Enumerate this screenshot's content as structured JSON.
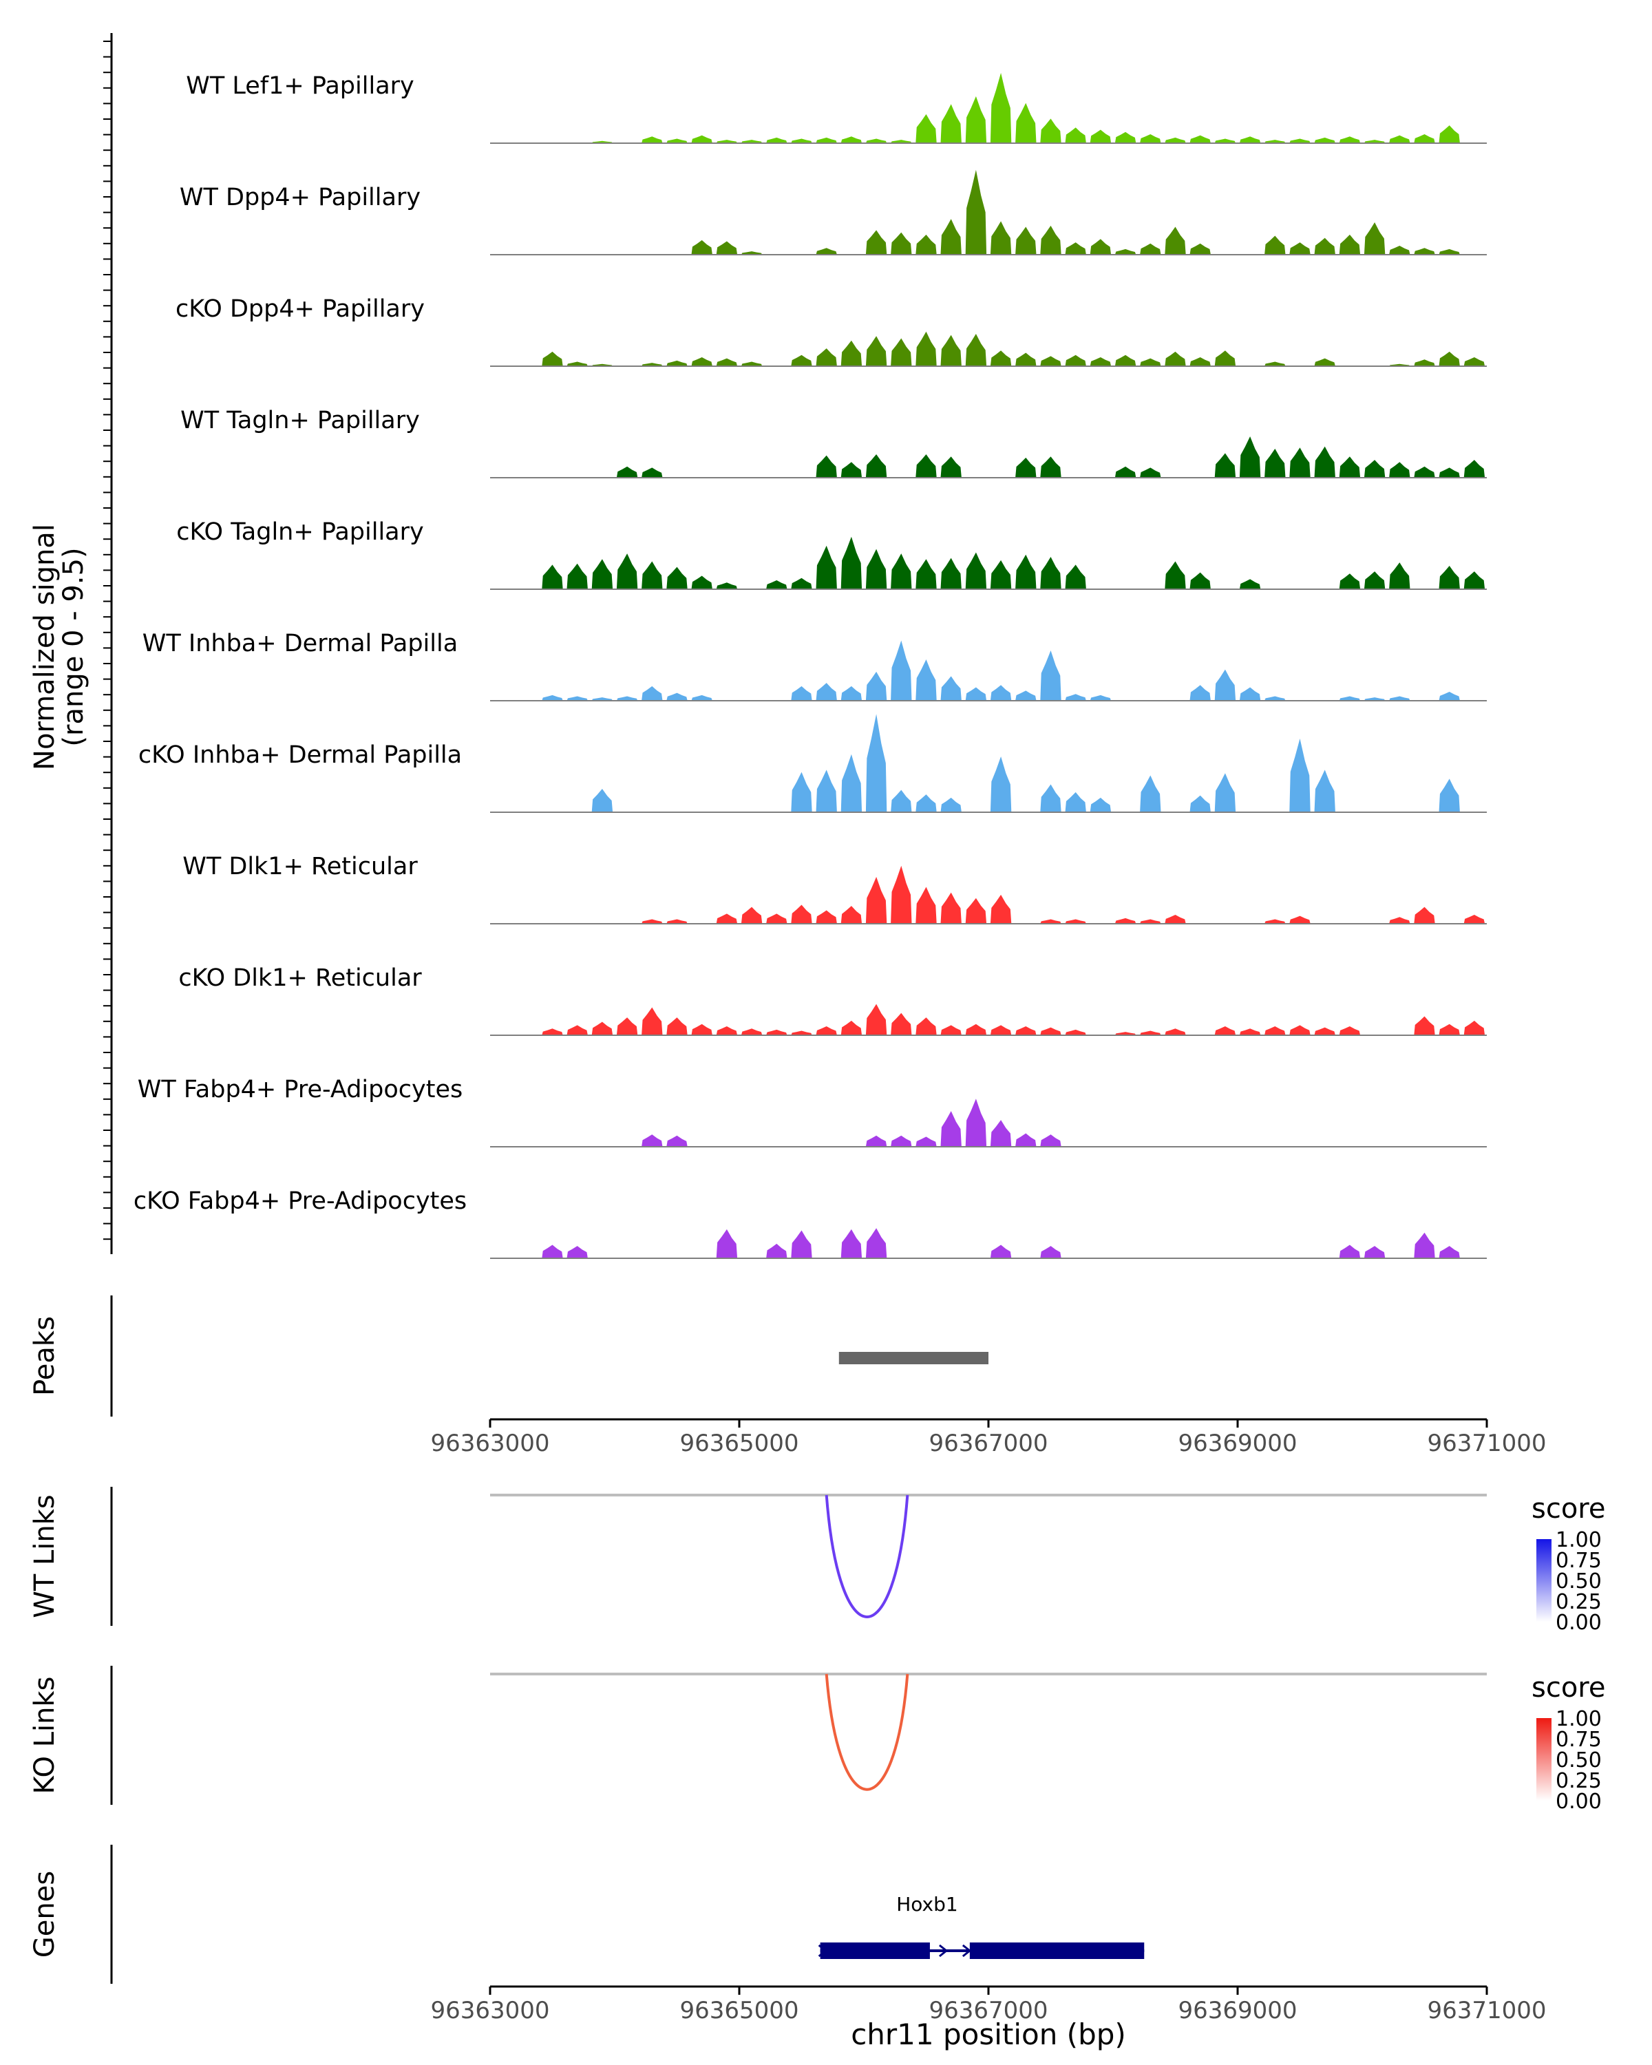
{
  "chart_data": {
    "type": "area",
    "title": "",
    "region": {
      "chrom": "chr11",
      "start": 96363000,
      "end": 96371000
    },
    "xlabel": "chr11 position (bp)",
    "xticks": [
      "96363000",
      "96365000",
      "96367000",
      "96369000",
      "96371000"
    ],
    "xtick_values": [
      96363000,
      96365000,
      96367000,
      96369000,
      96371000
    ],
    "coverage_ylabel": {
      "line1": "Normalized signal",
      "line2": "(range 0 - 9.5)"
    },
    "ylim": [
      0,
      9.5
    ],
    "x_samples": [
      96363100,
      96363300,
      96363500,
      96363700,
      96363900,
      96364100,
      96364300,
      96364500,
      96364700,
      96364900,
      96365100,
      96365300,
      96365500,
      96365700,
      96365900,
      96366100,
      96366300,
      96366500,
      96366700,
      96366900,
      96367100,
      96367300,
      96367500,
      96367700,
      96367900,
      96368100,
      96368300,
      96368500,
      96368700,
      96368900,
      96369100,
      96369300,
      96369500,
      96369700,
      96369900,
      96370100,
      96370300,
      96370500,
      96370700,
      96370900
    ],
    "tracks": [
      {
        "name": "WT Lef1+ Papillary",
        "color": "#66CC00",
        "values": [
          0,
          0,
          0,
          0,
          0.2,
          0,
          0.6,
          0.4,
          0.7,
          0.3,
          0.3,
          0.5,
          0.4,
          0.5,
          0.6,
          0.4,
          0.3,
          2.6,
          3.5,
          4.2,
          6.3,
          3.6,
          2.2,
          1.4,
          1.2,
          1.0,
          0.8,
          0.5,
          0.7,
          0.4,
          0.6,
          0.3,
          0.4,
          0.5,
          0.6,
          0.3,
          0.7,
          0.8,
          1.6,
          0
        ]
      },
      {
        "name": "WT Dpp4+ Papillary",
        "color": "#4D8C00",
        "values": [
          0,
          0,
          0,
          0,
          0,
          0,
          0,
          0,
          1.3,
          1.2,
          0.3,
          0,
          0,
          0.6,
          0,
          2.2,
          2.0,
          1.8,
          3.2,
          7.6,
          3.0,
          2.5,
          2.6,
          1.1,
          1.4,
          0.5,
          1.0,
          2.5,
          1.0,
          0,
          0,
          1.7,
          1.1,
          1.5,
          1.8,
          2.9,
          0.8,
          0.6,
          0.5,
          0
        ]
      },
      {
        "name": "cKO Dpp4+ Papillary",
        "color": "#4D8C00",
        "values": [
          0,
          0,
          1.3,
          0.4,
          0.2,
          0,
          0.3,
          0.5,
          0.8,
          0.7,
          0.4,
          0,
          1.0,
          1.6,
          2.3,
          2.7,
          2.5,
          3.1,
          2.8,
          2.9,
          1.4,
          1.2,
          0.9,
          1.0,
          0.8,
          1.0,
          0.7,
          1.3,
          0.8,
          1.4,
          0,
          0.4,
          0,
          0.7,
          0,
          0,
          0.2,
          0.6,
          1.3,
          0.8
        ]
      },
      {
        "name": "WT Tagln+ Papillary",
        "color": "#006400",
        "values": [
          0,
          0,
          0,
          0,
          0,
          1.0,
          0.9,
          0,
          0,
          0,
          0,
          0,
          0,
          2.0,
          1.4,
          2.1,
          0,
          2.1,
          1.9,
          0,
          0,
          1.8,
          1.9,
          0,
          0,
          1.0,
          0.9,
          0,
          0,
          2.2,
          3.7,
          2.6,
          2.7,
          2.8,
          1.9,
          1.6,
          1.4,
          1.0,
          0.9,
          1.6
        ]
      },
      {
        "name": "cKO Tagln+ Papillary",
        "color": "#006400",
        "values": [
          0,
          0,
          2.2,
          2.3,
          2.7,
          3.2,
          2.5,
          2.0,
          1.2,
          0.6,
          0,
          0.8,
          1.0,
          3.9,
          4.7,
          3.6,
          3.2,
          2.7,
          2.8,
          3.3,
          2.6,
          3.1,
          2.9,
          2.2,
          0,
          0,
          0,
          2.5,
          1.5,
          0,
          0.9,
          0,
          0,
          0,
          1.4,
          1.6,
          2.4,
          0,
          2.1,
          1.6
        ]
      },
      {
        "name": "WT Inhba+ Dermal Papilla",
        "color": "#5DADEC",
        "values": [
          0,
          0,
          0.5,
          0.4,
          0.3,
          0.4,
          1.3,
          0.7,
          0.5,
          0,
          0,
          0,
          1.3,
          1.6,
          1.3,
          2.6,
          5.4,
          3.7,
          2.2,
          1.2,
          1.4,
          0.9,
          4.5,
          0.6,
          0.5,
          0,
          0,
          0,
          1.4,
          2.8,
          1.2,
          0.4,
          0,
          0,
          0.4,
          0.3,
          0.4,
          0,
          0.8,
          0
        ]
      },
      {
        "name": "cKO Inhba+ Dermal Papilla",
        "color": "#5DADEC",
        "values": [
          0,
          0,
          0,
          0,
          2.1,
          0,
          0,
          0,
          0,
          0,
          0,
          0,
          3.6,
          3.8,
          5.2,
          8.8,
          2.0,
          1.6,
          1.3,
          0,
          5.0,
          0,
          2.5,
          1.8,
          1.3,
          0,
          3.3,
          0,
          1.5,
          3.5,
          0,
          0,
          6.6,
          3.8,
          0,
          0,
          0,
          0,
          3.0,
          0
        ]
      },
      {
        "name": "WT Dlk1+ Reticular",
        "color": "#FF3333",
        "values": [
          0,
          0,
          0,
          0,
          0,
          0,
          0.4,
          0.4,
          0,
          0.9,
          1.5,
          0.9,
          1.7,
          1.2,
          1.6,
          4.2,
          5.2,
          3.3,
          2.8,
          2.3,
          2.6,
          0,
          0.4,
          0.4,
          0,
          0.5,
          0.4,
          0.8,
          0,
          0,
          0,
          0.4,
          0.7,
          0,
          0,
          0,
          0.6,
          1.5,
          0,
          0.8
        ]
      },
      {
        "name": "cKO Dlk1+ Reticular",
        "color": "#FF3333",
        "values": [
          0,
          0,
          0.6,
          0.9,
          1.2,
          1.6,
          2.5,
          1.6,
          1.0,
          0.8,
          0.6,
          0.5,
          0.4,
          0.8,
          1.3,
          2.8,
          2.0,
          1.6,
          0.9,
          1.0,
          0.9,
          0.8,
          0.7,
          0.5,
          0,
          0.3,
          0.4,
          0.6,
          0,
          0.8,
          0.6,
          0.8,
          0.9,
          0.7,
          0.8,
          0,
          0,
          1.7,
          1.0,
          1.3
        ]
      },
      {
        "name": "WT Fabp4+ Pre-Adipocytes",
        "color": "#A63DE8",
        "values": [
          0,
          0,
          0,
          0,
          0,
          0,
          1.1,
          1.0,
          0,
          0,
          0,
          0,
          0,
          0,
          0,
          1.0,
          1.0,
          0.9,
          3.2,
          4.3,
          2.4,
          1.2,
          1.1,
          0,
          0,
          0,
          0,
          0,
          0,
          0,
          0,
          0,
          0,
          0,
          0,
          0,
          0,
          0,
          0,
          0
        ]
      },
      {
        "name": "cKO Fabp4+ Pre-Adipocytes",
        "color": "#A63DE8",
        "values": [
          0,
          0,
          1.2,
          1.1,
          0,
          0,
          0,
          0,
          0,
          2.6,
          0,
          1.3,
          2.5,
          0,
          2.6,
          2.7,
          0,
          0,
          0,
          0,
          1.2,
          0,
          1.1,
          0,
          0,
          0,
          0,
          0,
          0,
          0,
          0,
          0,
          0,
          0,
          1.2,
          1.1,
          0,
          2.3,
          1.1,
          0
        ]
      }
    ],
    "peaks": {
      "label": "Peaks",
      "regions": [
        [
          96365800,
          96367000
        ]
      ],
      "color": "#666666"
    },
    "links": [
      {
        "label": "WT Links",
        "start": 96365700,
        "end": 96366350,
        "score": 0.85,
        "color": "#6B3DF2",
        "legend": {
          "title": "score",
          "ticks": [
            "1.00",
            "0.75",
            "0.50",
            "0.25",
            "0.00"
          ],
          "low": "#FFFFFF",
          "high": "#1414E6"
        }
      },
      {
        "label": "KO Links",
        "start": 96365700,
        "end": 96366350,
        "score": 0.8,
        "color": "#F0603C",
        "legend": {
          "title": "score",
          "ticks": [
            "1.00",
            "0.75",
            "0.50",
            "0.25",
            "0.00"
          ],
          "low": "#FFFFFF",
          "high": "#EE1A12"
        }
      }
    ],
    "genes": {
      "label": "Genes",
      "items": [
        {
          "name": "Hoxb1",
          "start": 96365650,
          "end": 96368250,
          "color": "#000080",
          "exons": [
            [
              96365650,
              96366530
            ],
            [
              96366850,
              96368250
            ]
          ],
          "strand": "+"
        }
      ]
    }
  }
}
